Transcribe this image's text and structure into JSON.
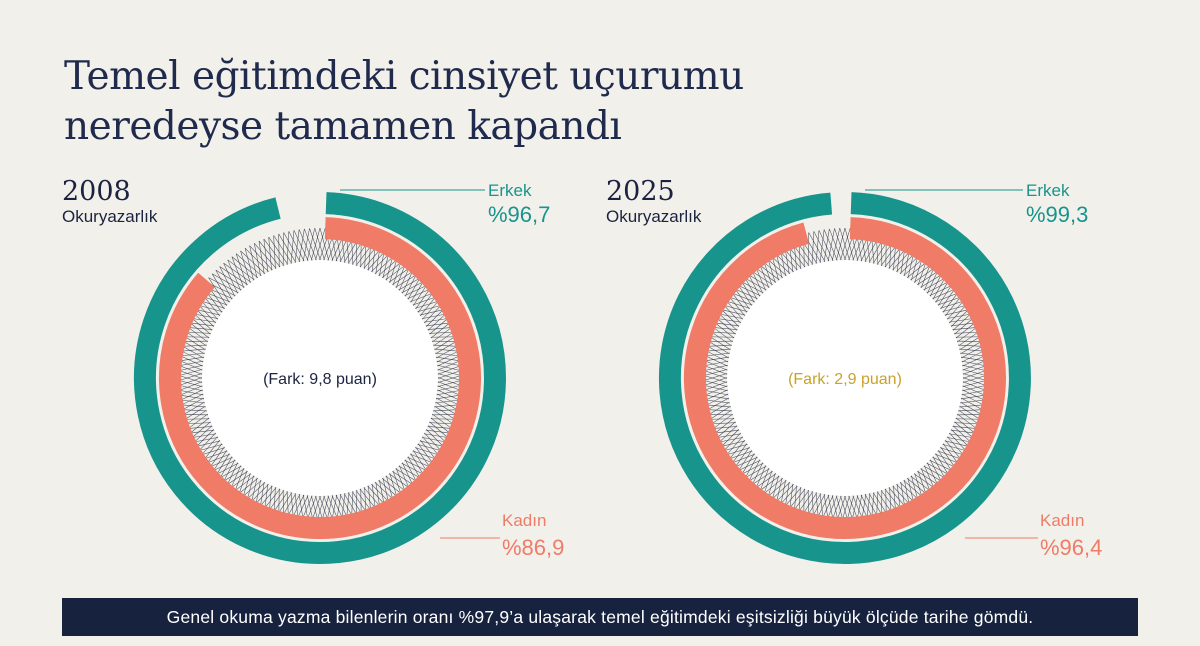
{
  "title_line1": "Temel eğitimdeki cinsiyet uçurumu",
  "title_line2": "neredeyse tamamen kapandı",
  "footer": "Genel okuma yazma bilenlerin oranı %97,9’a ulaşarak temel eğitimdeki eşitsizliği büyük ölçüde tarihe gömdü.",
  "colors": {
    "male": "#17948c",
    "female": "#f07b66",
    "gap_2008": "#1c2340",
    "gap_2025": "#c9a227"
  },
  "chart_data": [
    {
      "type": "donut",
      "year": "2008",
      "subtitle": "Okuryazarlık",
      "series": [
        {
          "name": "Erkek",
          "value": 96.7,
          "label": "%96,7"
        },
        {
          "name": "Kadın",
          "value": 86.9,
          "label": "%86,9"
        }
      ],
      "gap_label": "(Fark: 9,8 puan)"
    },
    {
      "type": "donut",
      "year": "2025",
      "subtitle": "Okuryazarlık",
      "series": [
        {
          "name": "Erkek",
          "value": 99.3,
          "label": "%99,3"
        },
        {
          "name": "Kadın",
          "value": 96.4,
          "label": "%96,4"
        }
      ],
      "gap_label": "(Fark: 2,9 puan)"
    }
  ]
}
